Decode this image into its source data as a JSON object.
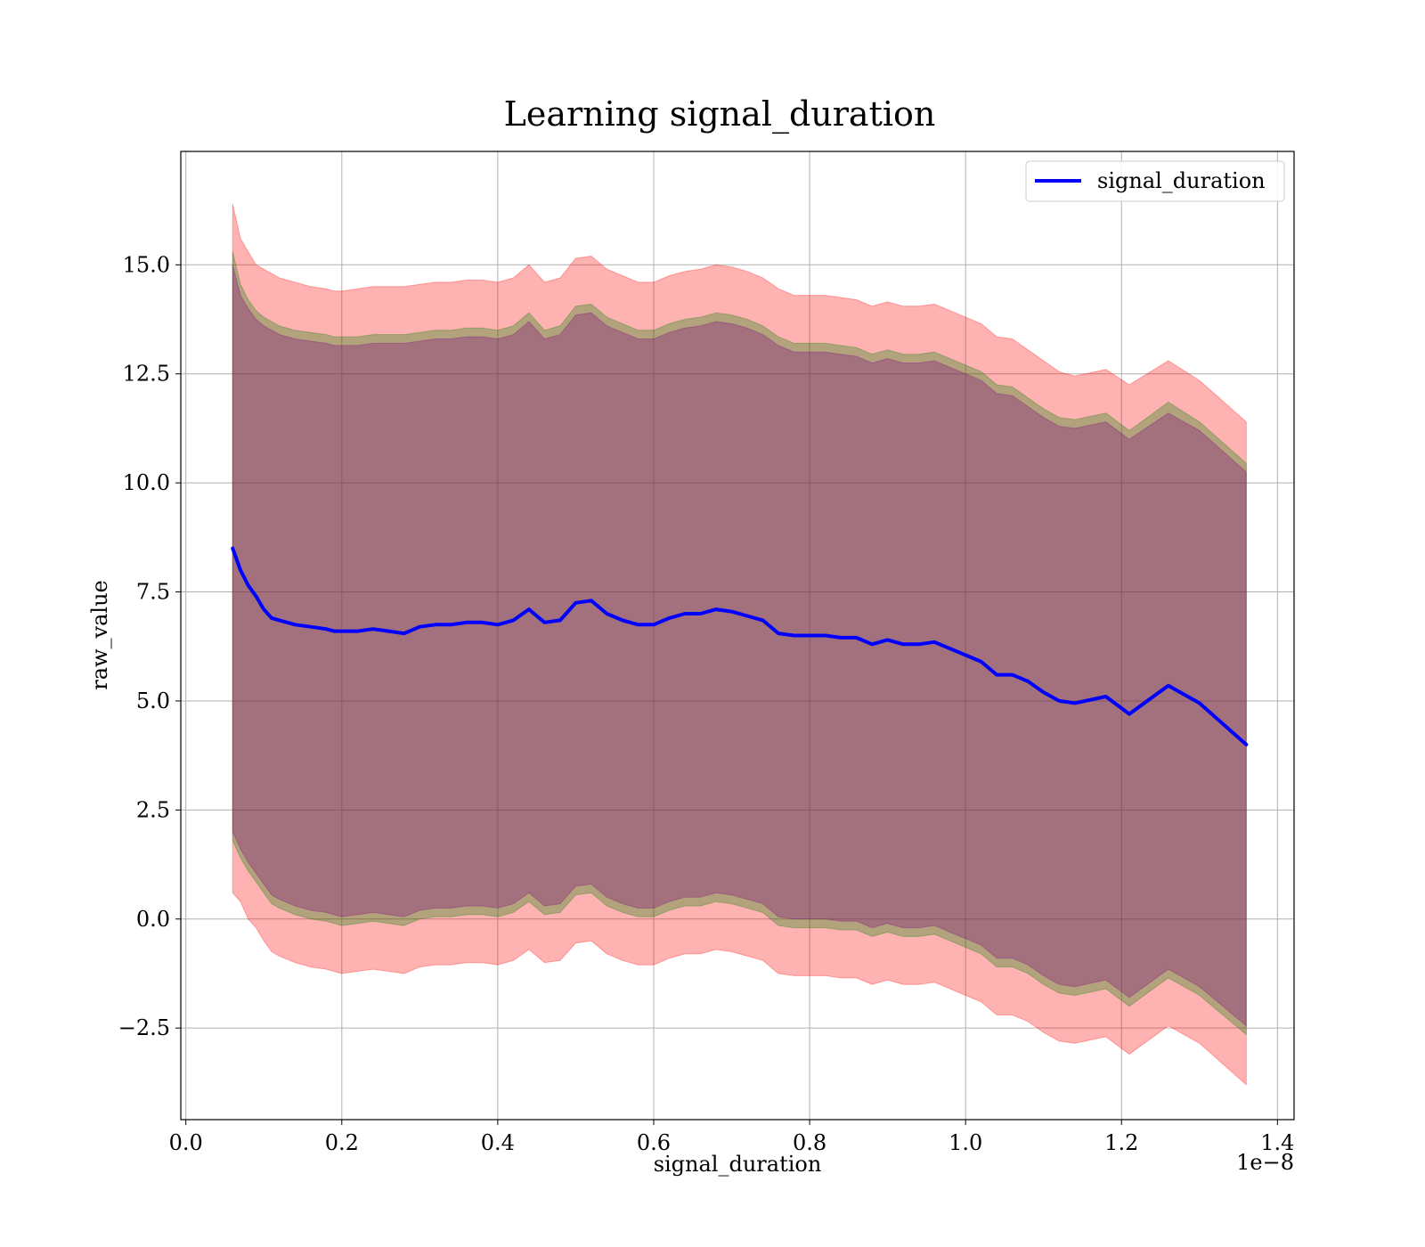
{
  "chart_data": {
    "type": "line",
    "title": "Learning signal_duration",
    "xlabel": "signal_duration",
    "ylabel": "raw_value",
    "x_offset_label": "1e−8",
    "xlim": [
      -0.0065,
      1.4213
    ],
    "ylim": [
      -4.6,
      17.6
    ],
    "x_ticks": [
      0.0,
      0.2,
      0.4,
      0.6,
      0.8,
      1.0,
      1.2,
      1.4
    ],
    "x_tick_labels": [
      "0.0",
      "0.2",
      "0.4",
      "0.6",
      "0.8",
      "1.0",
      "1.2",
      "1.4"
    ],
    "y_ticks": [
      -2.5,
      0.0,
      2.5,
      5.0,
      7.5,
      10.0,
      12.5,
      15.0
    ],
    "y_tick_labels": [
      "−2.5",
      "0.0",
      "2.5",
      "5.0",
      "7.5",
      "10.0",
      "12.5",
      "15.0"
    ],
    "grid": true,
    "legend_position": "upper right",
    "x": [
      0.06,
      0.07,
      0.08,
      0.09,
      0.1,
      0.11,
      0.12,
      0.14,
      0.16,
      0.18,
      0.19,
      0.2,
      0.22,
      0.24,
      0.26,
      0.28,
      0.3,
      0.32,
      0.34,
      0.36,
      0.38,
      0.4,
      0.42,
      0.44,
      0.46,
      0.48,
      0.5,
      0.52,
      0.54,
      0.56,
      0.58,
      0.6,
      0.62,
      0.64,
      0.66,
      0.68,
      0.7,
      0.72,
      0.74,
      0.76,
      0.78,
      0.8,
      0.82,
      0.84,
      0.86,
      0.88,
      0.9,
      0.92,
      0.94,
      0.96,
      0.98,
      1.0,
      1.02,
      1.04,
      1.06,
      1.08,
      1.1,
      1.12,
      1.14,
      1.18,
      1.21,
      1.26,
      1.3,
      1.36
    ],
    "series": [
      {
        "name": "signal_duration",
        "color": "#0000ff",
        "y": [
          8.5,
          8.0,
          7.65,
          7.4,
          7.1,
          6.9,
          6.85,
          6.75,
          6.7,
          6.65,
          6.6,
          6.6,
          6.6,
          6.65,
          6.6,
          6.55,
          6.7,
          6.75,
          6.75,
          6.8,
          6.8,
          6.75,
          6.85,
          7.1,
          6.8,
          6.85,
          7.25,
          7.3,
          7.0,
          6.85,
          6.75,
          6.75,
          6.9,
          7.0,
          7.0,
          7.1,
          7.05,
          6.95,
          6.85,
          6.55,
          6.5,
          6.5,
          6.5,
          6.45,
          6.45,
          6.3,
          6.4,
          6.3,
          6.3,
          6.35,
          6.2,
          6.05,
          5.9,
          5.6,
          5.6,
          5.45,
          5.2,
          5.0,
          4.95,
          5.1,
          4.7,
          5.35,
          4.95,
          4.0
        ]
      }
    ],
    "bands": [
      {
        "color": "#ff0000",
        "opacity": 0.3,
        "upper": [
          16.4,
          15.6,
          15.3,
          15.0,
          14.9,
          14.8,
          14.7,
          14.6,
          14.5,
          14.45,
          14.4,
          14.4,
          14.45,
          14.5,
          14.5,
          14.5,
          14.55,
          14.6,
          14.6,
          14.65,
          14.65,
          14.6,
          14.7,
          15.0,
          14.6,
          14.7,
          15.15,
          15.2,
          14.9,
          14.75,
          14.6,
          14.6,
          14.75,
          14.85,
          14.9,
          15.0,
          14.95,
          14.85,
          14.7,
          14.45,
          14.3,
          14.3,
          14.3,
          14.25,
          14.2,
          14.05,
          14.15,
          14.05,
          14.05,
          14.1,
          13.95,
          13.8,
          13.65,
          13.35,
          13.3,
          13.05,
          12.8,
          12.55,
          12.45,
          12.6,
          12.25,
          12.8,
          12.35,
          11.4
        ],
        "lower": [
          0.6,
          0.4,
          0.0,
          -0.2,
          -0.5,
          -0.75,
          -0.85,
          -1.0,
          -1.1,
          -1.15,
          -1.2,
          -1.25,
          -1.2,
          -1.15,
          -1.2,
          -1.25,
          -1.1,
          -1.05,
          -1.05,
          -1.0,
          -1.0,
          -1.05,
          -0.95,
          -0.7,
          -1.0,
          -0.95,
          -0.55,
          -0.5,
          -0.8,
          -0.95,
          -1.05,
          -1.05,
          -0.9,
          -0.8,
          -0.8,
          -0.7,
          -0.75,
          -0.85,
          -0.95,
          -1.25,
          -1.3,
          -1.3,
          -1.3,
          -1.35,
          -1.35,
          -1.5,
          -1.4,
          -1.5,
          -1.5,
          -1.45,
          -1.6,
          -1.75,
          -1.9,
          -2.2,
          -2.2,
          -2.35,
          -2.6,
          -2.8,
          -2.85,
          -2.7,
          -3.1,
          -2.45,
          -2.85,
          -3.8
        ]
      },
      {
        "color": "#008000",
        "opacity": 0.3,
        "upper": [
          15.3,
          14.55,
          14.2,
          13.95,
          13.8,
          13.7,
          13.6,
          13.5,
          13.45,
          13.4,
          13.35,
          13.35,
          13.35,
          13.4,
          13.4,
          13.4,
          13.45,
          13.5,
          13.5,
          13.55,
          13.55,
          13.5,
          13.6,
          13.9,
          13.5,
          13.6,
          14.05,
          14.1,
          13.8,
          13.65,
          13.5,
          13.5,
          13.65,
          13.75,
          13.8,
          13.9,
          13.85,
          13.75,
          13.6,
          13.35,
          13.2,
          13.2,
          13.2,
          13.15,
          13.1,
          12.95,
          13.05,
          12.95,
          12.95,
          13.0,
          12.85,
          12.7,
          12.55,
          12.25,
          12.2,
          11.95,
          11.7,
          11.5,
          11.45,
          11.6,
          11.2,
          11.85,
          11.4,
          10.45
        ],
        "lower": [
          1.8,
          1.4,
          1.1,
          0.85,
          0.6,
          0.35,
          0.25,
          0.1,
          0.0,
          -0.05,
          -0.1,
          -0.15,
          -0.1,
          -0.05,
          -0.1,
          -0.15,
          0.0,
          0.05,
          0.05,
          0.1,
          0.1,
          0.05,
          0.15,
          0.4,
          0.1,
          0.15,
          0.55,
          0.6,
          0.3,
          0.15,
          0.05,
          0.05,
          0.2,
          0.3,
          0.3,
          0.4,
          0.35,
          0.25,
          0.15,
          -0.15,
          -0.2,
          -0.2,
          -0.2,
          -0.25,
          -0.25,
          -0.4,
          -0.3,
          -0.4,
          -0.4,
          -0.35,
          -0.5,
          -0.65,
          -0.8,
          -1.1,
          -1.1,
          -1.25,
          -1.5,
          -1.7,
          -1.75,
          -1.6,
          -2.0,
          -1.35,
          -1.75,
          -2.65
        ]
      },
      {
        "color": "#800080",
        "opacity": 0.3,
        "upper": [
          15.0,
          14.3,
          14.0,
          13.75,
          13.6,
          13.5,
          13.4,
          13.3,
          13.25,
          13.2,
          13.15,
          13.15,
          13.15,
          13.2,
          13.2,
          13.2,
          13.25,
          13.3,
          13.3,
          13.35,
          13.35,
          13.3,
          13.4,
          13.7,
          13.3,
          13.4,
          13.85,
          13.9,
          13.6,
          13.45,
          13.3,
          13.3,
          13.45,
          13.55,
          13.6,
          13.7,
          13.65,
          13.55,
          13.4,
          13.15,
          13.0,
          13.0,
          13.0,
          12.95,
          12.9,
          12.75,
          12.85,
          12.75,
          12.75,
          12.8,
          12.65,
          12.5,
          12.35,
          12.05,
          12.0,
          11.75,
          11.5,
          11.3,
          11.25,
          11.4,
          11.0,
          11.6,
          11.2,
          10.25
        ],
        "lower": [
          2.0,
          1.6,
          1.3,
          1.05,
          0.8,
          0.55,
          0.45,
          0.3,
          0.2,
          0.15,
          0.1,
          0.05,
          0.1,
          0.15,
          0.1,
          0.05,
          0.2,
          0.25,
          0.25,
          0.3,
          0.3,
          0.25,
          0.35,
          0.6,
          0.3,
          0.35,
          0.75,
          0.8,
          0.5,
          0.35,
          0.25,
          0.25,
          0.4,
          0.5,
          0.5,
          0.6,
          0.55,
          0.45,
          0.35,
          0.05,
          0.0,
          0.0,
          0.0,
          -0.05,
          -0.05,
          -0.2,
          -0.1,
          -0.2,
          -0.2,
          -0.15,
          -0.3,
          -0.45,
          -0.6,
          -0.9,
          -0.9,
          -1.05,
          -1.3,
          -1.5,
          -1.55,
          -1.4,
          -1.8,
          -1.15,
          -1.55,
          -2.45
        ]
      }
    ]
  }
}
